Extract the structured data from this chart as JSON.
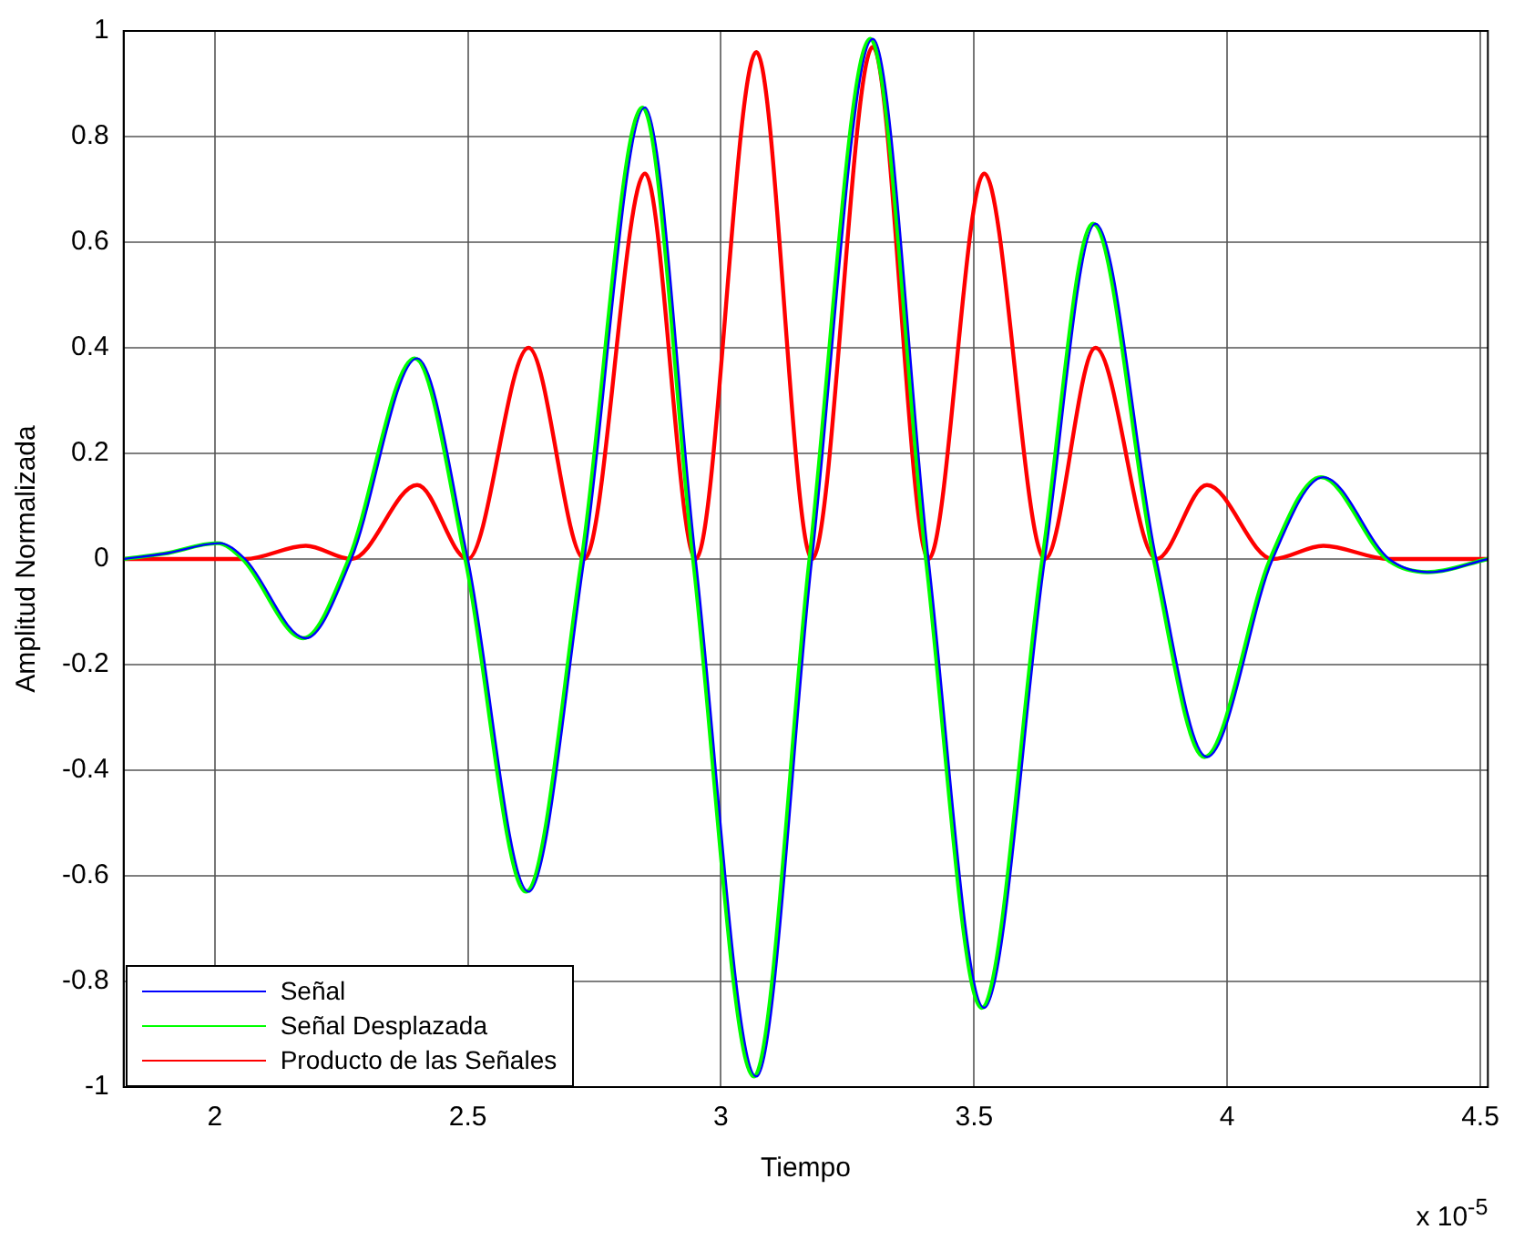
{
  "chart_data": {
    "type": "line",
    "xlabel": "Tiempo",
    "ylabel": "Amplitud Normalizada",
    "annotations": [
      "x 10$^{-5}$"
    ],
    "xlim": [
      1.82,
      4.515
    ],
    "xticks": [
      2,
      2.5,
      3,
      3.5,
      4,
      4.5
    ],
    "ylim": [
      -1,
      1
    ],
    "yticks": [
      -1,
      -0.8,
      -0.6,
      -0.4,
      -0.2,
      0,
      0.2,
      0.4,
      0.6,
      0.8,
      1
    ],
    "grid": true,
    "legend": "bottom left",
    "marker": "none",
    "line_style": "solid",
    "series": [
      {
        "name": "Señal",
        "color": "#0000ff",
        "x": [
          1.82,
          1.9,
          2.01,
          2.06,
          2.18,
          2.27,
          2.4,
          2.5,
          2.62,
          2.73,
          2.85,
          2.95,
          3.07,
          3.18,
          3.3,
          3.41,
          3.52,
          3.64,
          3.74,
          3.86,
          3.96,
          4.09,
          4.19,
          4.32,
          4.4,
          4.515
        ],
        "values": [
          0,
          0.01,
          0.03,
          0,
          -0.15,
          0,
          0.38,
          0,
          -0.63,
          0,
          0.855,
          0,
          -0.98,
          0,
          0.985,
          0,
          -0.85,
          0,
          0.635,
          0,
          -0.375,
          0,
          0.155,
          0,
          -0.025,
          0
        ]
      },
      {
        "name": "Señal Desplazada",
        "color": "#00ff00",
        "x": [
          1.82,
          1.9,
          2.005,
          2.055,
          2.175,
          2.265,
          2.395,
          2.495,
          2.615,
          2.725,
          2.845,
          2.945,
          3.065,
          3.175,
          3.295,
          3.405,
          3.515,
          3.635,
          3.735,
          3.855,
          3.955,
          4.085,
          4.185,
          4.315,
          4.395,
          4.515
        ],
        "values": [
          0,
          0.01,
          0.03,
          0,
          -0.15,
          0,
          0.38,
          0,
          -0.63,
          0,
          0.855,
          0,
          -0.98,
          0,
          0.985,
          0,
          -0.85,
          0,
          0.635,
          0,
          -0.375,
          0,
          0.155,
          0,
          -0.025,
          0
        ]
      },
      {
        "name": "Producto de las Señales",
        "color": "#ff0000",
        "x": [
          1.82,
          2.06,
          2.18,
          2.27,
          2.4,
          2.5,
          2.62,
          2.73,
          2.85,
          2.95,
          3.07,
          3.18,
          3.3,
          3.41,
          3.52,
          3.64,
          3.74,
          3.86,
          3.96,
          4.09,
          4.19,
          4.32,
          4.515
        ],
        "values": [
          0,
          0,
          0.025,
          0,
          0.14,
          0,
          0.4,
          0,
          0.73,
          0,
          0.96,
          0,
          0.97,
          0,
          0.73,
          0,
          0.4,
          0,
          0.14,
          0,
          0.025,
          0,
          0
        ]
      }
    ]
  }
}
